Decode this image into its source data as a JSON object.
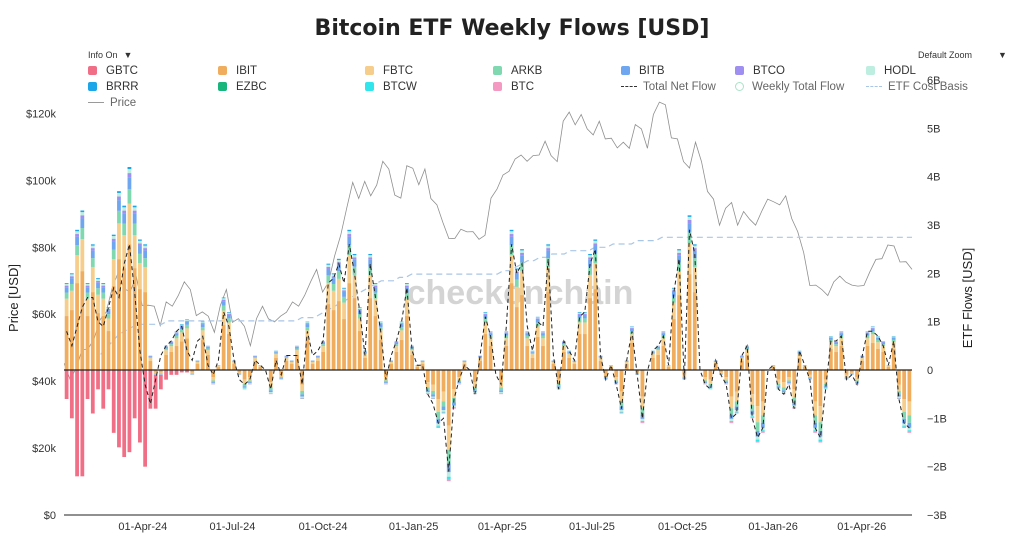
{
  "title": "Bitcoin ETF Weekly Flows [USD]",
  "controls": {
    "info_label": "Info On",
    "zoom_label": "Default Zoom"
  },
  "watermark": "checkonchain",
  "legend": [
    {
      "name": "GBTC",
      "color": "#f06f86",
      "kind": "box"
    },
    {
      "name": "IBIT",
      "color": "#f0ad5e",
      "kind": "box"
    },
    {
      "name": "FBTC",
      "color": "#f6cd8a",
      "kind": "box"
    },
    {
      "name": "ARKB",
      "color": "#7fd8b0",
      "kind": "box"
    },
    {
      "name": "BITB",
      "color": "#6ea6ef",
      "kind": "box"
    },
    {
      "name": "BTCO",
      "color": "#9e8ff0",
      "kind": "box"
    },
    {
      "name": "HODL",
      "color": "#bdeee0",
      "kind": "box"
    },
    {
      "name": "BRRR",
      "color": "#1aa6e8",
      "kind": "box"
    },
    {
      "name": "EZBC",
      "color": "#18b67c",
      "kind": "box"
    },
    {
      "name": "BTCW",
      "color": "#30e6ec",
      "kind": "box"
    },
    {
      "name": "BTC",
      "color": "#f49ac2",
      "kind": "box"
    },
    {
      "name": "Total Net Flow",
      "color": "#333333",
      "kind": "dash"
    },
    {
      "name": "Weekly Total Flow",
      "color": "#a9e3c7",
      "kind": "circle"
    },
    {
      "name": "ETF Cost Basis",
      "color": "#aac6e6",
      "kind": "dash"
    },
    {
      "name": "Price",
      "color": "#9a9a9a",
      "kind": "line"
    }
  ],
  "chart_data": {
    "type": "bar",
    "title": "Bitcoin ETF Weekly Flows [USD]",
    "y_left": {
      "label": "Price [USD]",
      "ticks": [
        "$0",
        "$20k",
        "$40k",
        "$60k",
        "$80k",
        "$100k",
        "$120k"
      ],
      "range": [
        0,
        130000
      ]
    },
    "y_right": {
      "label": "ETF Flows [USD]",
      "ticks": [
        "−3B",
        "−2B",
        "−1B",
        "0",
        "1B",
        "2B",
        "3B",
        "4B",
        "5B",
        "6B"
      ],
      "range": [
        -3,
        6
      ],
      "unit": "B USD"
    },
    "x_ticks": [
      "01-Apr-24",
      "01-Jul-24",
      "01-Oct-24",
      "01-Jan-25",
      "01-Apr-25",
      "01-Jul-25",
      "01-Oct-25",
      "01-Jan-26",
      "01-Apr-26"
    ],
    "x_start": "2024-01-12",
    "series_colors": {
      "GBTC": "#f06f86",
      "IBIT": "#f0ad5e",
      "FBTC": "#f6cd8a",
      "ARKB": "#7fd8b0",
      "BITB": "#6ea6ef",
      "BTCO": "#9e8ff0",
      "HODL": "#bdeee0",
      "BRRR": "#1aa6e8",
      "EZBC": "#18b67c",
      "BTCW": "#30e6ec",
      "BTC": "#f49ac2"
    },
    "weekly_net_flow_billion": [
      1.2,
      1.0,
      0.7,
      1.1,
      1.2,
      1.7,
      1.5,
      1.0,
      0.9,
      1.5,
      2.1,
      1.6,
      2.5,
      2.4,
      1.2,
      0.6,
      -0.5,
      -0.8,
      -0.4,
      0.3,
      0.5,
      0.7,
      0.9,
      1.0,
      -0.1,
      0.2,
      1.0,
      0.5,
      -0.3,
      0.1,
      1.5,
      1.2,
      0.2,
      -0.1,
      -0.4,
      -0.3,
      0.3,
      0.1,
      0.0,
      -0.5,
      0.4,
      -0.2,
      0.3,
      0.2,
      0.5,
      -0.6,
      1.0,
      0.2,
      0.3,
      0.6,
      2.2,
      2.0,
      2.3,
      1.7,
      2.9,
      2.4,
      1.3,
      0.4,
      2.4,
      1.8,
      1.0,
      -0.3,
      0.2,
      0.6,
      1.0,
      1.8,
      0.5,
      0.1,
      0.2,
      -0.5,
      -0.6,
      -1.2,
      -0.9,
      -2.3,
      -0.8,
      -0.3,
      0.2,
      0.0,
      -0.5,
      0.3,
      1.2,
      0.8,
      0.0,
      -0.5,
      0.8,
      2.9,
      2.1,
      2.5,
      0.8,
      0.4,
      1.1,
      0.8,
      2.6,
      0.2,
      -0.4,
      0.6,
      0.4,
      0.2,
      1.2,
      1.2,
      2.4,
      2.7,
      0.3,
      -0.2,
      0.1,
      -0.3,
      -0.9,
      0.2,
      0.9,
      -0.1,
      -1.1,
      0.0,
      0.4,
      0.5,
      0.8,
      0.1,
      1.7,
      2.5,
      -0.2,
      3.2,
      2.6,
      0.0,
      -0.3,
      -0.4,
      0.2,
      -0.1,
      -0.3,
      -1.1,
      -0.9,
      0.3,
      0.5,
      -1.0,
      -1.5,
      -1.3,
      0.0,
      0.1,
      -0.4,
      -0.5,
      -0.3,
      -0.8,
      0.4,
      0.1,
      -0.2,
      -1.3,
      -1.5,
      -0.4,
      0.7,
      0.6,
      0.8,
      -0.2,
      -0.1,
      -0.3,
      0.3,
      0.8,
      0.9,
      0.7,
      0.6,
      0.1,
      0.7,
      -0.6,
      -1.2,
      -1.3
    ],
    "total_net_flow_billion": [
      0.8,
      0.5,
      0.9,
      1.3,
      1.5,
      1.5,
      1.0,
      0.9,
      1.3,
      1.7,
      1.5,
      2.2,
      2.6,
      1.6,
      0.4,
      -0.3,
      -0.7,
      -0.2,
      0.3,
      0.5,
      0.6,
      0.8,
      0.9,
      0.4,
      0.2,
      0.6,
      0.7,
      0.1,
      -0.1,
      0.2,
      1.2,
      0.9,
      0.2,
      -0.2,
      -0.3,
      -0.2,
      0.2,
      0.1,
      0.0,
      -0.4,
      0.2,
      -0.1,
      0.3,
      0.3,
      0.3,
      -0.3,
      0.8,
      0.3,
      0.4,
      0.6,
      1.8,
      1.9,
      2.2,
      1.8,
      2.6,
      2.0,
      1.2,
      0.3,
      2.2,
      1.5,
      0.8,
      -0.2,
      0.3,
      0.6,
      1.0,
      1.7,
      0.4,
      0.1,
      0.1,
      -0.5,
      -0.7,
      -1.1,
      -1.0,
      -2.1,
      -0.6,
      -0.2,
      0.1,
      0.0,
      -0.5,
      0.3,
      1.1,
      0.7,
      -0.1,
      -0.3,
      0.9,
      2.6,
      2.0,
      2.2,
      0.9,
      0.4,
      1.0,
      0.9,
      2.3,
      0.3,
      -0.4,
      0.6,
      0.4,
      0.2,
      1.1,
      1.2,
      2.2,
      2.5,
      0.3,
      -0.2,
      0.1,
      -0.3,
      -0.8,
      0.2,
      0.8,
      -0.1,
      -1.0,
      0.0,
      0.4,
      0.5,
      0.7,
      0.1,
      1.6,
      2.3,
      -0.2,
      2.9,
      2.4,
      0.0,
      -0.3,
      -0.4,
      0.2,
      -0.1,
      -0.3,
      -1.0,
      -0.9,
      0.3,
      0.5,
      -1.0,
      -1.4,
      -1.2,
      0.0,
      0.1,
      -0.4,
      -0.5,
      -0.3,
      -0.8,
      0.4,
      0.1,
      -0.2,
      -1.2,
      -1.4,
      -0.4,
      0.6,
      0.6,
      0.7,
      -0.2,
      -0.1,
      -0.3,
      0.3,
      0.8,
      0.8,
      0.7,
      0.5,
      0.1,
      0.6,
      -0.6,
      -1.1,
      -1.2
    ],
    "gbtc_outflow_billion": [
      -0.6,
      -1.0,
      -2.2,
      -2.2,
      -0.6,
      -0.9,
      -0.4,
      -0.8,
      -0.4,
      -1.3,
      -1.6,
      -1.8,
      -1.7,
      -1.0,
      -1.5,
      -2.0,
      -0.8,
      -0.7,
      -0.3,
      -0.2,
      -0.1,
      -0.1,
      -0.05,
      -0.05
    ],
    "price_usd": [
      44000,
      42000,
      43000,
      48000,
      51000,
      52000,
      57000,
      62000,
      67000,
      71000,
      69000,
      66000,
      70000,
      64000,
      62000,
      61000,
      58000,
      63000,
      61000,
      67000,
      69000,
      66000,
      61000,
      60000,
      58000,
      56000,
      62000,
      66000,
      59000,
      58000,
      55000,
      52000,
      58000,
      61000,
      60000,
      57000,
      58000,
      62000,
      63000,
      61000,
      67000,
      69000,
      72000,
      68000,
      69000,
      76000,
      85000,
      91000,
      98000,
      96000,
      99000,
      94000,
      100000,
      105000,
      102000,
      97000,
      94000,
      103000,
      105000,
      98000,
      102000,
      96000,
      92000,
      86000,
      84000,
      82000,
      84000,
      86000,
      84000,
      81000,
      85000,
      94000,
      96000,
      103000,
      102000,
      105000,
      109000,
      105000,
      106000,
      109000,
      111000,
      106000,
      107000,
      117000,
      119000,
      118000,
      119000,
      114000,
      115000,
      117000,
      111000,
      114000,
      109000,
      110000,
      111000,
      116000,
      114000,
      111000,
      119000,
      122000,
      124000,
      112000,
      111000,
      107000,
      103000,
      110000,
      107000,
      96000,
      93000,
      88000,
      91000,
      92000,
      88000,
      90000,
      87000,
      88000,
      90000,
      93000,
      95000,
      92000,
      94000,
      90000,
      84000,
      77000,
      70000,
      68000,
      66000,
      67000,
      69000,
      70000,
      71000,
      68000,
      67000,
      70000,
      72000,
      75000,
      78000,
      80000,
      79000,
      77000,
      75000,
      72000
    ],
    "etf_cost_basis_usd": [
      0,
      0,
      0,
      0,
      0,
      0,
      48000,
      50000,
      52000,
      54000,
      55000,
      56000,
      57000,
      57000,
      57000,
      57000,
      57000,
      58000,
      58000,
      58000,
      58000,
      58000,
      58000,
      58000,
      58000,
      58000,
      58000,
      58000,
      58000,
      58000,
      58000,
      58000,
      58000,
      58000,
      58000,
      58000,
      58000,
      58000,
      58000,
      59000,
      59000,
      59000,
      60000,
      61000,
      62000,
      63000,
      64000,
      65000,
      66000,
      67000,
      68000,
      69000,
      70000,
      70000,
      70000,
      71000,
      71000,
      72000,
      72000,
      72000,
      72000,
      72000,
      72000,
      72000,
      72000,
      72000,
      72000,
      72000,
      72000,
      72000,
      72000,
      72000,
      73000,
      73000,
      74000,
      75000,
      76000,
      76000,
      77000,
      77000,
      78000,
      78000,
      78000,
      79000,
      79000,
      79000,
      79000,
      80000,
      80000,
      80000,
      81000,
      81000,
      81000,
      81000,
      82000,
      82000,
      82000,
      82000,
      83000,
      83000,
      83000,
      83000,
      83000,
      83000,
      83000,
      83000,
      83000,
      83000,
      83000,
      83000,
      83000,
      83000,
      83000,
      83000,
      83000,
      83000,
      83000,
      83000,
      83000,
      83000,
      83000,
      83000,
      83000,
      83000,
      83000,
      83000,
      83000,
      83000,
      83000,
      83000,
      83000,
      83000,
      83000,
      83000,
      83000,
      83000,
      83000,
      83000,
      83000,
      83000
    ]
  }
}
